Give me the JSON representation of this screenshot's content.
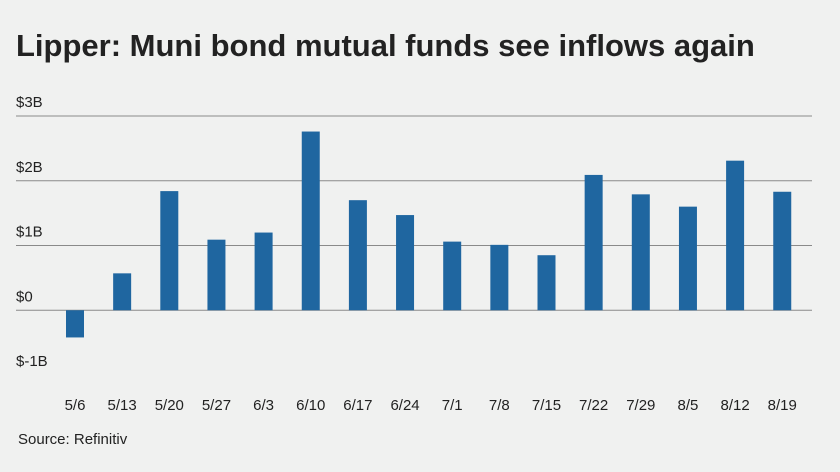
{
  "title": "Lipper: Muni bond mutual funds see inflows again",
  "source": "Source: Refinitiv",
  "colors": {
    "bar": "#1f66a0",
    "grid": "#8a8a8a",
    "text": "#222222",
    "background": "#f0f1f0"
  },
  "chart_data": {
    "type": "bar",
    "title": "Lipper: Muni bond mutual funds see inflows again",
    "xlabel": "",
    "ylabel": "",
    "ylim": [
      -1,
      3
    ],
    "yticks": [
      3,
      2,
      1,
      0,
      -1
    ],
    "ytick_labels": [
      "$3B",
      "$2B",
      "$1B",
      "$0",
      "$-1B"
    ],
    "grid": true,
    "categories": [
      "5/6",
      "5/13",
      "5/20",
      "5/27",
      "6/3",
      "6/10",
      "6/17",
      "6/24",
      "7/1",
      "7/8",
      "7/15",
      "7/22",
      "7/29",
      "8/5",
      "8/12",
      "8/19"
    ],
    "values": [
      -0.42,
      0.57,
      1.84,
      1.09,
      1.2,
      2.76,
      1.7,
      1.47,
      1.06,
      1.01,
      0.85,
      2.09,
      1.79,
      1.6,
      2.31,
      1.83
    ],
    "units": "billions of dollars"
  }
}
